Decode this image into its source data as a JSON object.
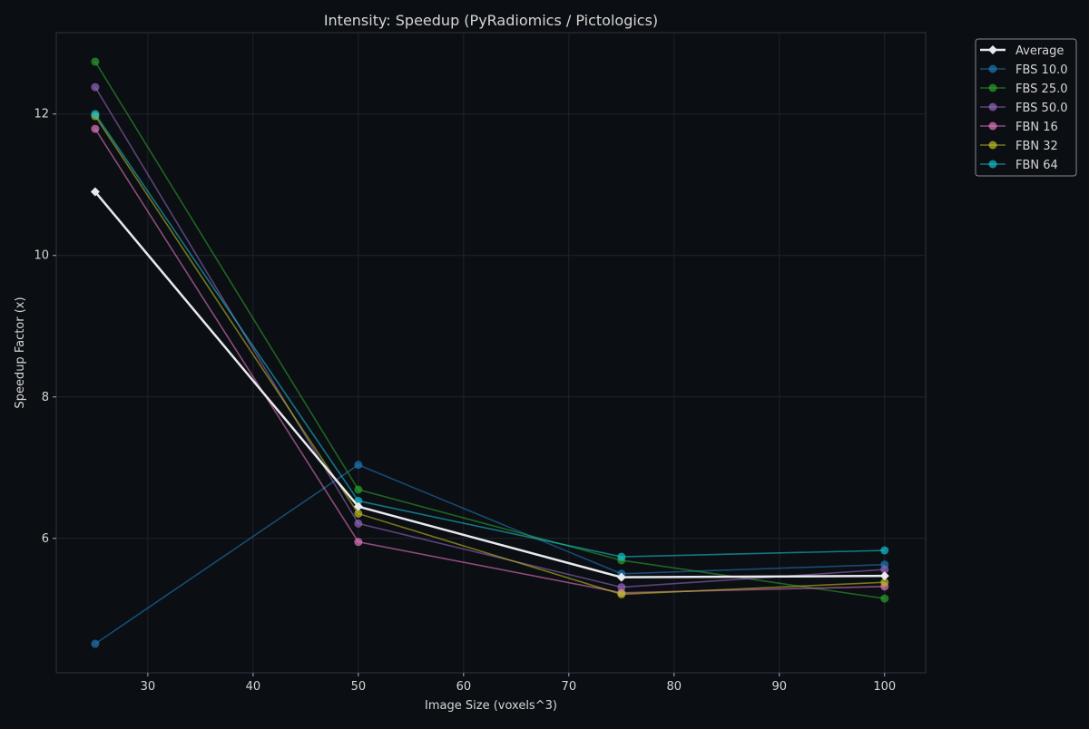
{
  "chart_data": {
    "type": "line",
    "title": "Intensity: Speedup (PyRadiomics / Pictologics)",
    "xlabel": "Image Size (voxels^3)",
    "ylabel": "Speedup Factor (x)",
    "x": [
      25,
      50,
      75,
      100
    ],
    "xlim": [
      21.3,
      103.9
    ],
    "ylim": [
      4.1,
      13.15
    ],
    "xticks": [
      30,
      40,
      50,
      60,
      70,
      80,
      90,
      100
    ],
    "yticks": [
      6,
      8,
      10,
      12
    ],
    "grid": true,
    "legend_position": "outside-top-right",
    "series": [
      {
        "name": "Average",
        "values": [
          10.9,
          6.45,
          5.45,
          5.47
        ],
        "color": "#e8eaee",
        "marker": "diamond"
      },
      {
        "name": "FBS 10.0",
        "values": [
          4.51,
          7.04,
          5.5,
          5.63
        ],
        "color": "#1f77b4",
        "marker": "circle"
      },
      {
        "name": "FBS 25.0",
        "values": [
          12.74,
          6.69,
          5.69,
          5.15
        ],
        "color": "#2ca02c",
        "marker": "circle"
      },
      {
        "name": "FBS 50.0",
        "values": [
          12.38,
          6.21,
          5.31,
          5.56
        ],
        "color": "#9467bd",
        "marker": "circle"
      },
      {
        "name": "FBN 16",
        "values": [
          11.79,
          5.95,
          5.23,
          5.32
        ],
        "color": "#e377c2",
        "marker": "circle"
      },
      {
        "name": "FBN 32",
        "values": [
          11.97,
          6.35,
          5.21,
          5.38
        ],
        "color": "#bcbd22",
        "marker": "circle"
      },
      {
        "name": "FBN 64",
        "values": [
          12.0,
          6.53,
          5.74,
          5.83
        ],
        "color": "#17becf",
        "marker": "circle"
      }
    ]
  }
}
